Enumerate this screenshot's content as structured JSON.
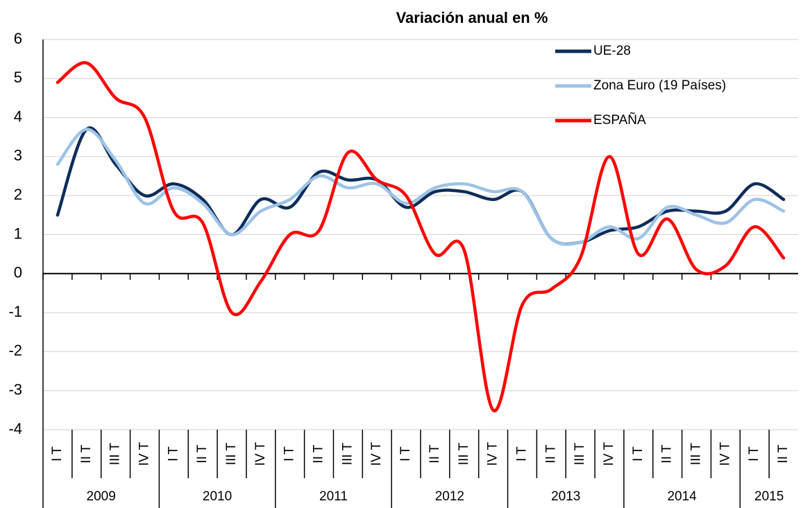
{
  "chart_data": {
    "type": "line",
    "title": "Variación anual en %",
    "category_groups": [
      {
        "name": "2009",
        "categories": [
          "I T",
          "II T",
          "III T",
          "IV T"
        ]
      },
      {
        "name": "2010",
        "categories": [
          "I T",
          "II T",
          "III T",
          "IV T"
        ]
      },
      {
        "name": "2011",
        "categories": [
          "I T",
          "II T",
          "III T",
          "IV T"
        ]
      },
      {
        "name": "2012",
        "categories": [
          "I T",
          "II T",
          "III T",
          "IV T"
        ]
      },
      {
        "name": "2013",
        "categories": [
          "I T",
          "II T",
          "III T",
          "IV T"
        ]
      },
      {
        "name": "2014",
        "categories": [
          "I T",
          "II T",
          "III T",
          "IV T"
        ]
      },
      {
        "name": "2015",
        "categories": [
          "I T",
          "II T"
        ]
      }
    ],
    "series": [
      {
        "name": "UE-28",
        "color": "#0d2d5a",
        "values": [
          1.5,
          3.7,
          2.8,
          2.0,
          2.3,
          1.9,
          1.0,
          1.9,
          1.7,
          2.6,
          2.4,
          2.4,
          1.7,
          2.1,
          2.1,
          1.9,
          2.1,
          0.9,
          0.8,
          1.1,
          1.2,
          1.6,
          1.6,
          1.6,
          2.3,
          1.9
        ]
      },
      {
        "name": "Zona Euro (19 Países)",
        "color": "#9dc3e6",
        "values": [
          2.8,
          3.7,
          2.9,
          1.8,
          2.2,
          1.8,
          1.0,
          1.6,
          1.9,
          2.5,
          2.2,
          2.3,
          1.8,
          2.2,
          2.3,
          2.1,
          2.1,
          0.9,
          0.8,
          1.2,
          0.9,
          1.7,
          1.5,
          1.3,
          1.9,
          1.6
        ]
      },
      {
        "name": "ESPAÑA",
        "color": "#ff0000",
        "values": [
          4.9,
          5.4,
          4.5,
          4.0,
          1.6,
          1.3,
          -1.0,
          -0.2,
          1.0,
          1.1,
          3.1,
          2.4,
          2.0,
          0.5,
          0.6,
          -3.5,
          -0.8,
          -0.4,
          0.4,
          3.0,
          0.5,
          1.4,
          0.1,
          0.2,
          1.2,
          0.4
        ]
      }
    ],
    "ylim": [
      -4,
      6
    ],
    "yticks": [
      -4,
      -3,
      -2,
      -1,
      0,
      1,
      2,
      3,
      4,
      5,
      6
    ],
    "negative_tick_color": "#ff0000",
    "grid": true,
    "smooth": true,
    "legend": "upper right"
  }
}
